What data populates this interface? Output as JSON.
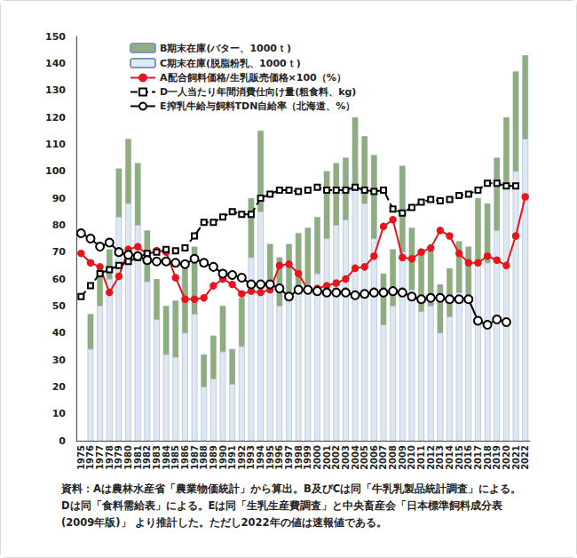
{
  "chart_data": {
    "type": "bar",
    "categories": [
      "1975",
      "1976",
      "1977",
      "1978",
      "1979",
      "1980",
      "1981",
      "1982",
      "1983",
      "1984",
      "1985",
      "1986",
      "1987",
      "1988",
      "1989",
      "1990",
      "1991",
      "1992",
      "1993",
      "1994",
      "1995",
      "1996",
      "1997",
      "1998",
      "1999",
      "2000",
      "2001",
      "2002",
      "2003",
      "2004",
      "2005",
      "2006",
      "2007",
      "2008",
      "2009",
      "2010",
      "2011",
      "2012",
      "2013",
      "2014",
      "2015",
      "2016",
      "2017",
      "2018",
      "2019",
      "2020",
      "2021",
      "2022"
    ],
    "series": [
      {
        "name": "B期末在庫(バター、1000ｔ)",
        "type": "bar",
        "color": "#8fae7c",
        "values": [
          null,
          13,
          14,
          11,
          18,
          24,
          23,
          19,
          15,
          18,
          21,
          26,
          25,
          12,
          16,
          17,
          13,
          18,
          22,
          30,
          18,
          18,
          18,
          20,
          21,
          21,
          25,
          23,
          23,
          26,
          25,
          31,
          19,
          21,
          32,
          23,
          22,
          22,
          18,
          18,
          19,
          19,
          23,
          22,
          27,
          25,
          37,
          31
        ]
      },
      {
        "name": "C期末在庫(脱脂粉乳、1000ｔ)",
        "type": "bar",
        "color": "#dfe7f3",
        "values": [
          null,
          34,
          50,
          60,
          83,
          88,
          80,
          59,
          45,
          32,
          31,
          40,
          47,
          20,
          23,
          33,
          21,
          35,
          68,
          85,
          55,
          50,
          55,
          57,
          58,
          62,
          75,
          80,
          82,
          94,
          88,
          75,
          43,
          50,
          70,
          56,
          48,
          50,
          40,
          46,
          55,
          53,
          67,
          66,
          78,
          95,
          100,
          112
        ]
      },
      {
        "name": "A配合飼料価格/生乳販売価格×100（%）",
        "type": "line",
        "color": "#e8141c",
        "marker": "circle",
        "line_style": "solid",
        "values": [
          69.5,
          66,
          64.5,
          55,
          61,
          71,
          72,
          69,
          70.5,
          70,
          60.5,
          52.5,
          52.5,
          53,
          57.5,
          60,
          58,
          54.5,
          55.5,
          55,
          56,
          65,
          65.5,
          62,
          56,
          56.5,
          57.5,
          58.5,
          60,
          64,
          64.5,
          68.5,
          79.5,
          82,
          68,
          67.5,
          70,
          71.5,
          78,
          76,
          69.5,
          66,
          66,
          68.5,
          67,
          65,
          76,
          90.5
        ]
      },
      {
        "name": "D一人当たり年間消費仕向け量(粗食料、kg)",
        "type": "line",
        "color": "#000000",
        "marker": "hollow_square",
        "line_style": "dashed",
        "values": [
          53.5,
          57.5,
          62,
          63.5,
          65,
          66.5,
          68,
          69.5,
          70,
          71,
          70.5,
          71.5,
          76,
          81,
          81,
          83,
          85,
          84,
          84,
          90,
          91.5,
          93,
          93,
          92.5,
          93,
          94,
          93,
          93,
          93,
          94,
          93,
          92.5,
          93,
          86,
          84.5,
          86.5,
          88.5,
          89.5,
          89,
          89.5,
          91,
          91.5,
          93,
          95.5,
          95.5,
          94.5,
          94.5,
          null
        ]
      },
      {
        "name": "E搾乳牛給与飼料TDN自給率（北海道、%）",
        "type": "line",
        "color": "#000000",
        "marker": "hollow_circle",
        "line_style": "solid",
        "values": [
          77,
          75,
          72,
          73.5,
          70,
          69,
          68.5,
          67,
          66.5,
          66.5,
          66,
          65.5,
          67.5,
          66,
          64.5,
          62,
          61.5,
          60.5,
          58,
          58,
          58,
          56.5,
          53.5,
          56,
          56,
          55.5,
          55,
          55,
          55,
          54,
          54.5,
          55,
          55,
          55.5,
          55,
          53.5,
          52.5,
          53,
          53,
          52.5,
          52.5,
          52.5,
          44.5,
          43,
          45,
          44,
          null,
          null
        ]
      }
    ],
    "stacked": true,
    "ylim": [
      0,
      150
    ],
    "yticks": [
      0,
      10,
      20,
      30,
      40,
      50,
      60,
      70,
      80,
      90,
      100,
      110,
      120,
      130,
      140,
      150
    ],
    "grid": false,
    "legend": "upper left",
    "notes": [
      "資料：Aは農林水産省「農業物価統計」から算出。B及びCは同「牛乳乳製品統計調査」による。",
      "Dは同「食料需給表」による。Eは同「生乳生産費調査」と中央畜産会「日本標準飼料成分表",
      "(2009年版)」 より推計した。ただし2022年の値は速報値である。"
    ]
  }
}
